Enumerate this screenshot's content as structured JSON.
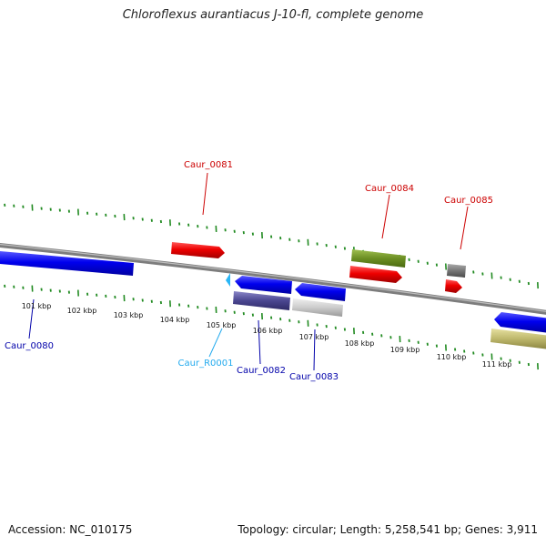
{
  "title": "Chloroflexus aurantiacus J-10-fl, complete genome",
  "footer": {
    "accession": "Accession: NC_010175",
    "summary": "Topology: circular; Length: 5,258,541 bp; Genes: 3,911"
  },
  "scale_labels": [
    "101 kbp",
    "102 kbp",
    "103 kbp",
    "104 kbp",
    "105 kbp",
    "106 kbp",
    "107 kbp",
    "108 kbp",
    "109 kbp",
    "110 kbp",
    "111 kbp"
  ],
  "colors": {
    "cds_forward": "#ee0000",
    "cds_reverse": "#0000ee",
    "rna": "#22aaee",
    "pseudo_gray": "#777777",
    "olive": "#6b8e23",
    "khaki": "#bdb76b",
    "tick": "#228b22",
    "backbone": "#808080",
    "label_forward": "#cc0000",
    "label_reverse": "#0000aa"
  },
  "genes": {
    "forward": [
      {
        "name": "Caur_0081"
      },
      {
        "name": "Caur_0084"
      },
      {
        "name": "Caur_0085"
      }
    ],
    "reverse": [
      {
        "name": "Caur_0080"
      },
      {
        "name": "Caur_R0001"
      },
      {
        "name": "Caur_0082"
      },
      {
        "name": "Caur_0083"
      }
    ]
  }
}
